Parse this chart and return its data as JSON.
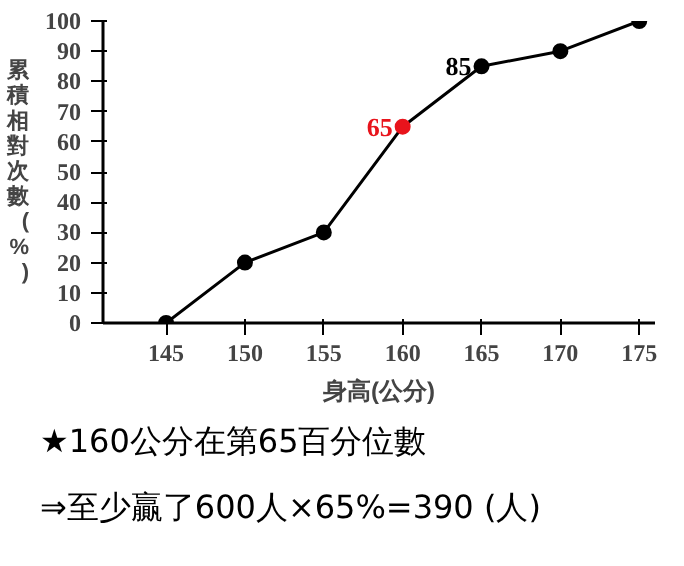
{
  "chart_data": {
    "type": "line",
    "xlabel": "身高(公分)",
    "ylabel": "累積相對次數(%)",
    "x": [
      145,
      150,
      155,
      160,
      165,
      170,
      175
    ],
    "values": [
      0,
      20,
      30,
      65,
      85,
      90,
      100
    ],
    "colors": [
      "#000000",
      "#000000",
      "#000000",
      "#e8141c",
      "#000000",
      "#000000",
      "#000000"
    ],
    "value_labels": [
      null,
      null,
      null,
      "65",
      "85",
      null,
      null
    ],
    "color": "#000000",
    "marker": "circle",
    "xlim": [
      141,
      176
    ],
    "ylim": [
      0,
      100
    ],
    "xticks": [
      145,
      150,
      155,
      160,
      165,
      170,
      175
    ],
    "yticks": [
      0,
      10,
      20,
      30,
      40,
      50,
      60,
      70,
      80,
      90,
      100
    ],
    "annotations": [
      "★160公分在第65百分位數",
      "⇒至少贏了600人×65%=390 (人)"
    ]
  }
}
